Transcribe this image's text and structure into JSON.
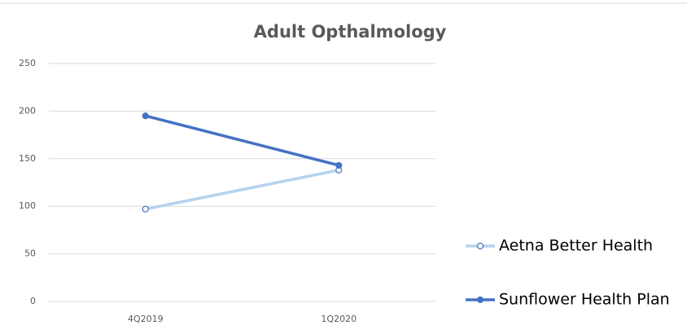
{
  "chart_data": {
    "type": "line",
    "title": "Adult Opthalmology",
    "categories": [
      "4Q2019",
      "1Q2020"
    ],
    "series": [
      {
        "name": "Aetna Better Health",
        "color": "#b4d3ee",
        "marker_color": "#4472c4",
        "marker": "hollow",
        "values": [
          97,
          138
        ]
      },
      {
        "name": "Sunflower Health Plan",
        "color": "#4472c4",
        "marker_color": "#4472c4",
        "marker": "filled",
        "values": [
          195,
          143
        ]
      }
    ],
    "ylim": [
      0,
      250
    ],
    "yticks": [
      0,
      50,
      100,
      150,
      200,
      250
    ],
    "grid": true,
    "legend": "right"
  }
}
